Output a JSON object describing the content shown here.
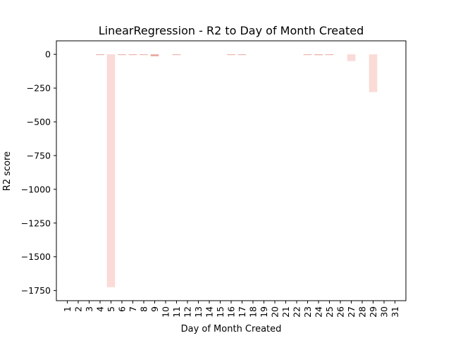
{
  "chart_data": {
    "type": "bar",
    "title": "LinearRegression - R2 to Day of Month Created",
    "xlabel": "Day of Month Created",
    "ylabel": "R2 score",
    "categories": [
      "1",
      "2",
      "3",
      "4",
      "5",
      "6",
      "7",
      "8",
      "9",
      "10",
      "11",
      "12",
      "13",
      "14",
      "15",
      "16",
      "17",
      "18",
      "19",
      "20",
      "21",
      "22",
      "23",
      "24",
      "25",
      "26",
      "27",
      "28",
      "29",
      "30",
      "31"
    ],
    "values": [
      0,
      0,
      0,
      -2,
      -1725,
      -3,
      -4,
      -5,
      -14,
      0,
      -1,
      0,
      0,
      0,
      0,
      -1,
      -2,
      0,
      0,
      0,
      0,
      0,
      -2,
      -6,
      -3,
      0,
      -50,
      0,
      -280,
      0,
      0
    ],
    "ylim": [
      -1825,
      100
    ],
    "yticks": [
      0,
      -250,
      -500,
      -750,
      -1000,
      -1250,
      -1500,
      -1750
    ],
    "ytick_labels": [
      "0",
      "−250",
      "−500",
      "−750",
      "−1000",
      "−1250",
      "−1500",
      "−1750"
    ],
    "bar_color": "#fadbd8",
    "bar_edge_color": "#e8a79c",
    "grid": false,
    "legend": "none"
  }
}
